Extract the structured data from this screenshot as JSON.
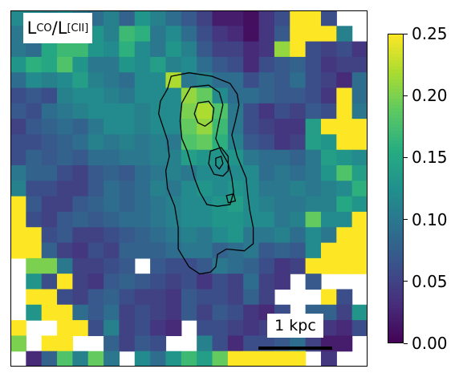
{
  "chart_data": {
    "type": "heatmap",
    "title_parts": {
      "lead": "L",
      "sub1": "CO",
      "mid": "/L",
      "sub2": "[CII]"
    },
    "colorbar": {
      "colormap": "viridis",
      "range": [
        0.0,
        0.25
      ],
      "ticks": [
        "0.00",
        "0.05",
        "0.10",
        "0.15",
        "0.20",
        "0.25"
      ],
      "tick_values": [
        0.0,
        0.05,
        0.1,
        0.15,
        0.2,
        0.25
      ]
    },
    "scale_bar_label": "1 kpc",
    "grid_cols": 23,
    "grid_rows": 23,
    "notes_values_estimated": "pixel values are ratios on the 0-0.25 colour scale",
    "grid": [
      [
        0.12,
        0.12,
        0.11,
        0.12,
        0.1,
        0.09,
        0.11,
        0.08,
        0.13,
        0.11,
        0.09,
        0.07,
        0.05,
        0.02,
        0.02,
        0.01,
        0.04,
        0.06,
        0.25,
        0.25,
        0.06,
        null,
        null
      ],
      [
        0.1,
        0.11,
        0.1,
        0.09,
        0.11,
        0.13,
        0.11,
        0.17,
        0.16,
        0.1,
        0.12,
        0.09,
        0.06,
        0.04,
        0.03,
        0.01,
        0.04,
        0.07,
        0.25,
        0.25,
        0.25,
        0.11,
        null
      ],
      [
        0.1,
        0.09,
        0.15,
        0.17,
        0.17,
        0.13,
        0.12,
        0.16,
        0.12,
        0.1,
        0.13,
        0.11,
        0.07,
        0.05,
        0.05,
        0.03,
        0.04,
        0.21,
        0.25,
        0.06,
        0.05,
        0.06,
        0.04
      ],
      [
        0.13,
        0.16,
        0.15,
        0.18,
        0.13,
        0.1,
        0.1,
        0.13,
        0.12,
        0.14,
        0.11,
        0.12,
        0.09,
        0.07,
        0.06,
        0.03,
        0.06,
        0.07,
        0.08,
        0.06,
        0.04,
        0.05,
        0.05
      ],
      [
        0.09,
        0.12,
        0.11,
        0.12,
        0.14,
        0.11,
        0.1,
        0.09,
        0.12,
        0.12,
        0.22,
        0.1,
        0.11,
        0.09,
        0.09,
        0.06,
        0.08,
        0.07,
        0.09,
        0.06,
        0.05,
        0.03,
        0.09
      ],
      [
        0.06,
        0.07,
        0.06,
        0.11,
        0.12,
        0.12,
        0.11,
        0.1,
        0.12,
        0.12,
        0.12,
        0.21,
        0.19,
        0.12,
        0.09,
        0.09,
        0.08,
        0.07,
        0.07,
        0.06,
        0.04,
        0.25,
        0.09
      ],
      [
        0.07,
        0.06,
        0.09,
        0.1,
        0.11,
        0.12,
        0.12,
        0.12,
        0.11,
        0.12,
        0.12,
        0.2,
        0.22,
        0.18,
        0.1,
        0.06,
        0.04,
        0.06,
        0.05,
        0.07,
        0.06,
        0.25,
        0.1
      ],
      [
        0.05,
        0.07,
        0.08,
        0.09,
        0.08,
        0.1,
        0.12,
        0.12,
        0.11,
        0.12,
        0.12,
        0.19,
        0.21,
        0.17,
        0.1,
        0.06,
        0.05,
        0.04,
        0.04,
        0.14,
        0.25,
        0.25,
        0.25
      ],
      [
        0.06,
        0.06,
        0.07,
        0.08,
        0.09,
        0.11,
        0.1,
        0.11,
        0.1,
        0.11,
        0.1,
        0.18,
        0.19,
        0.16,
        0.11,
        0.07,
        0.06,
        0.04,
        0.05,
        0.14,
        0.13,
        0.25,
        0.25
      ],
      [
        0.06,
        0.08,
        0.07,
        0.08,
        0.07,
        0.09,
        0.09,
        0.1,
        0.1,
        0.11,
        0.11,
        0.14,
        0.13,
        0.13,
        0.13,
        0.1,
        0.09,
        0.09,
        0.08,
        0.1,
        0.14,
        0.13,
        0.12
      ],
      [
        0.1,
        0.08,
        0.08,
        0.06,
        0.05,
        0.07,
        0.08,
        0.07,
        0.09,
        0.1,
        0.11,
        0.1,
        0.12,
        0.12,
        0.12,
        0.12,
        0.09,
        0.1,
        0.09,
        0.1,
        0.13,
        0.18,
        0.14
      ],
      [
        0.11,
        0.06,
        0.06,
        0.05,
        0.05,
        0.07,
        0.09,
        0.08,
        0.09,
        0.11,
        0.1,
        0.12,
        0.13,
        0.12,
        0.13,
        0.12,
        0.1,
        0.1,
        0.11,
        0.1,
        0.11,
        0.12,
        0.16
      ],
      [
        0.25,
        0.07,
        0.05,
        0.05,
        0.07,
        0.08,
        0.09,
        0.08,
        0.09,
        0.1,
        0.11,
        0.12,
        0.12,
        0.13,
        0.14,
        0.12,
        0.11,
        0.1,
        0.1,
        0.11,
        0.11,
        0.15,
        0.13
      ],
      [
        0.25,
        0.06,
        0.05,
        0.07,
        0.08,
        0.07,
        0.08,
        0.09,
        0.09,
        0.1,
        0.11,
        0.12,
        0.12,
        0.13,
        0.13,
        0.12,
        0.12,
        0.1,
        0.11,
        0.19,
        0.12,
        0.12,
        0.25
      ],
      [
        0.25,
        0.25,
        0.06,
        0.07,
        0.05,
        0.05,
        0.06,
        0.07,
        0.08,
        0.09,
        0.1,
        0.11,
        0.1,
        0.12,
        0.13,
        0.1,
        0.1,
        0.11,
        0.09,
        0.12,
        0.1,
        0.25,
        0.25
      ],
      [
        0.25,
        0.25,
        0.08,
        0.05,
        0.04,
        0.06,
        0.05,
        0.08,
        0.08,
        0.08,
        0.09,
        0.1,
        0.1,
        0.08,
        0.09,
        0.1,
        0.07,
        0.08,
        0.07,
        0.12,
        0.25,
        0.25,
        0.25
      ],
      [
        null,
        0.2,
        0.2,
        0.1,
        0.05,
        0.05,
        0.06,
        0.07,
        null,
        0.07,
        0.06,
        0.06,
        0.07,
        0.1,
        0.09,
        0.08,
        0.06,
        0.04,
        0.05,
        0.25,
        0.25,
        0.25,
        0.25
      ],
      [
        null,
        0.13,
        0.06,
        0.25,
        0.05,
        0.04,
        0.07,
        0.08,
        0.07,
        0.06,
        0.05,
        0.06,
        0.04,
        0.06,
        0.05,
        0.09,
        0.05,
        0.04,
        null,
        0.07,
        null,
        null,
        null
      ],
      [
        null,
        0.25,
        0.25,
        0.06,
        0.05,
        0.07,
        0.08,
        0.06,
        0.05,
        0.05,
        0.04,
        0.07,
        0.06,
        0.06,
        0.05,
        0.08,
        0.05,
        null,
        null,
        null,
        0.25,
        0.06,
        null
      ],
      [
        null,
        0.13,
        0.25,
        0.25,
        0.09,
        0.07,
        0.09,
        0.05,
        0.06,
        0.05,
        0.04,
        0.07,
        0.05,
        0.07,
        0.06,
        0.04,
        0.03,
        0.06,
        null,
        0.08,
        0.08,
        0.05,
        0.13
      ],
      [
        0.25,
        null,
        null,
        0.25,
        0.25,
        0.06,
        0.11,
        0.05,
        0.06,
        0.04,
        0.03,
        null,
        0.06,
        0.06,
        0.05,
        0.04,
        0.05,
        0.06,
        0.05,
        0.04,
        0.04,
        0.03,
        0.06
      ],
      [
        0.2,
        null,
        0.25,
        0.25,
        null,
        null,
        0.08,
        0.05,
        0.07,
        0.06,
        null,
        null,
        0.11,
        0.06,
        0.03,
        0.06,
        0.06,
        0.07,
        0.09,
        0.05,
        0.02,
        0.02,
        null
      ],
      [
        null,
        0.03,
        0.08,
        0.18,
        0.11,
        0.19,
        0.1,
        null,
        0.12,
        0.09,
        0.13,
        0.17,
        0.14,
        0.19,
        0.25,
        0.25,
        0.25,
        0.25,
        0.25,
        null,
        0.04,
        null,
        null
      ]
    ],
    "contours": [
      [
        [
          0.45,
          0.185
        ],
        [
          0.5,
          0.175
        ],
        [
          0.565,
          0.185
        ],
        [
          0.615,
          0.205
        ],
        [
          0.635,
          0.235
        ],
        [
          0.64,
          0.265
        ],
        [
          0.63,
          0.31
        ],
        [
          0.62,
          0.35
        ],
        [
          0.635,
          0.41
        ],
        [
          0.66,
          0.47
        ],
        [
          0.665,
          0.52
        ],
        [
          0.67,
          0.56
        ],
        [
          0.68,
          0.61
        ],
        [
          0.68,
          0.655
        ],
        [
          0.655,
          0.675
        ],
        [
          0.605,
          0.67
        ],
        [
          0.58,
          0.685
        ],
        [
          0.575,
          0.72
        ],
        [
          0.56,
          0.735
        ],
        [
          0.53,
          0.74
        ],
        [
          0.5,
          0.72
        ],
        [
          0.47,
          0.67
        ],
        [
          0.47,
          0.61
        ],
        [
          0.46,
          0.55
        ],
        [
          0.44,
          0.5
        ],
        [
          0.435,
          0.45
        ],
        [
          0.445,
          0.41
        ],
        [
          0.44,
          0.365
        ],
        [
          0.425,
          0.32
        ],
        [
          0.415,
          0.29
        ],
        [
          0.42,
          0.255
        ],
        [
          0.44,
          0.22
        ],
        [
          0.45,
          0.185
        ]
      ],
      [
        [
          0.505,
          0.215
        ],
        [
          0.555,
          0.21
        ],
        [
          0.585,
          0.23
        ],
        [
          0.595,
          0.265
        ],
        [
          0.585,
          0.31
        ],
        [
          0.575,
          0.36
        ],
        [
          0.59,
          0.395
        ],
        [
          0.61,
          0.43
        ],
        [
          0.62,
          0.47
        ],
        [
          0.625,
          0.51
        ],
        [
          0.615,
          0.545
        ],
        [
          0.58,
          0.55
        ],
        [
          0.55,
          0.545
        ],
        [
          0.53,
          0.51
        ],
        [
          0.515,
          0.47
        ],
        [
          0.505,
          0.43
        ],
        [
          0.495,
          0.395
        ],
        [
          0.48,
          0.36
        ],
        [
          0.475,
          0.31
        ],
        [
          0.48,
          0.26
        ],
        [
          0.505,
          0.215
        ]
      ],
      [
        [
          0.525,
          0.26
        ],
        [
          0.555,
          0.255
        ],
        [
          0.57,
          0.275
        ],
        [
          0.565,
          0.31
        ],
        [
          0.545,
          0.325
        ],
        [
          0.525,
          0.315
        ],
        [
          0.515,
          0.29
        ],
        [
          0.525,
          0.26
        ]
      ],
      [
        [
          0.56,
          0.395
        ],
        [
          0.59,
          0.385
        ],
        [
          0.61,
          0.41
        ],
        [
          0.61,
          0.45
        ],
        [
          0.595,
          0.465
        ],
        [
          0.57,
          0.46
        ],
        [
          0.555,
          0.43
        ],
        [
          0.56,
          0.395
        ]
      ],
      [
        [
          0.575,
          0.415
        ],
        [
          0.59,
          0.41
        ],
        [
          0.595,
          0.43
        ],
        [
          0.585,
          0.445
        ],
        [
          0.575,
          0.435
        ],
        [
          0.575,
          0.415
        ]
      ],
      [
        [
          0.605,
          0.52
        ],
        [
          0.625,
          0.515
        ],
        [
          0.63,
          0.535
        ],
        [
          0.61,
          0.54
        ],
        [
          0.605,
          0.52
        ]
      ]
    ]
  }
}
